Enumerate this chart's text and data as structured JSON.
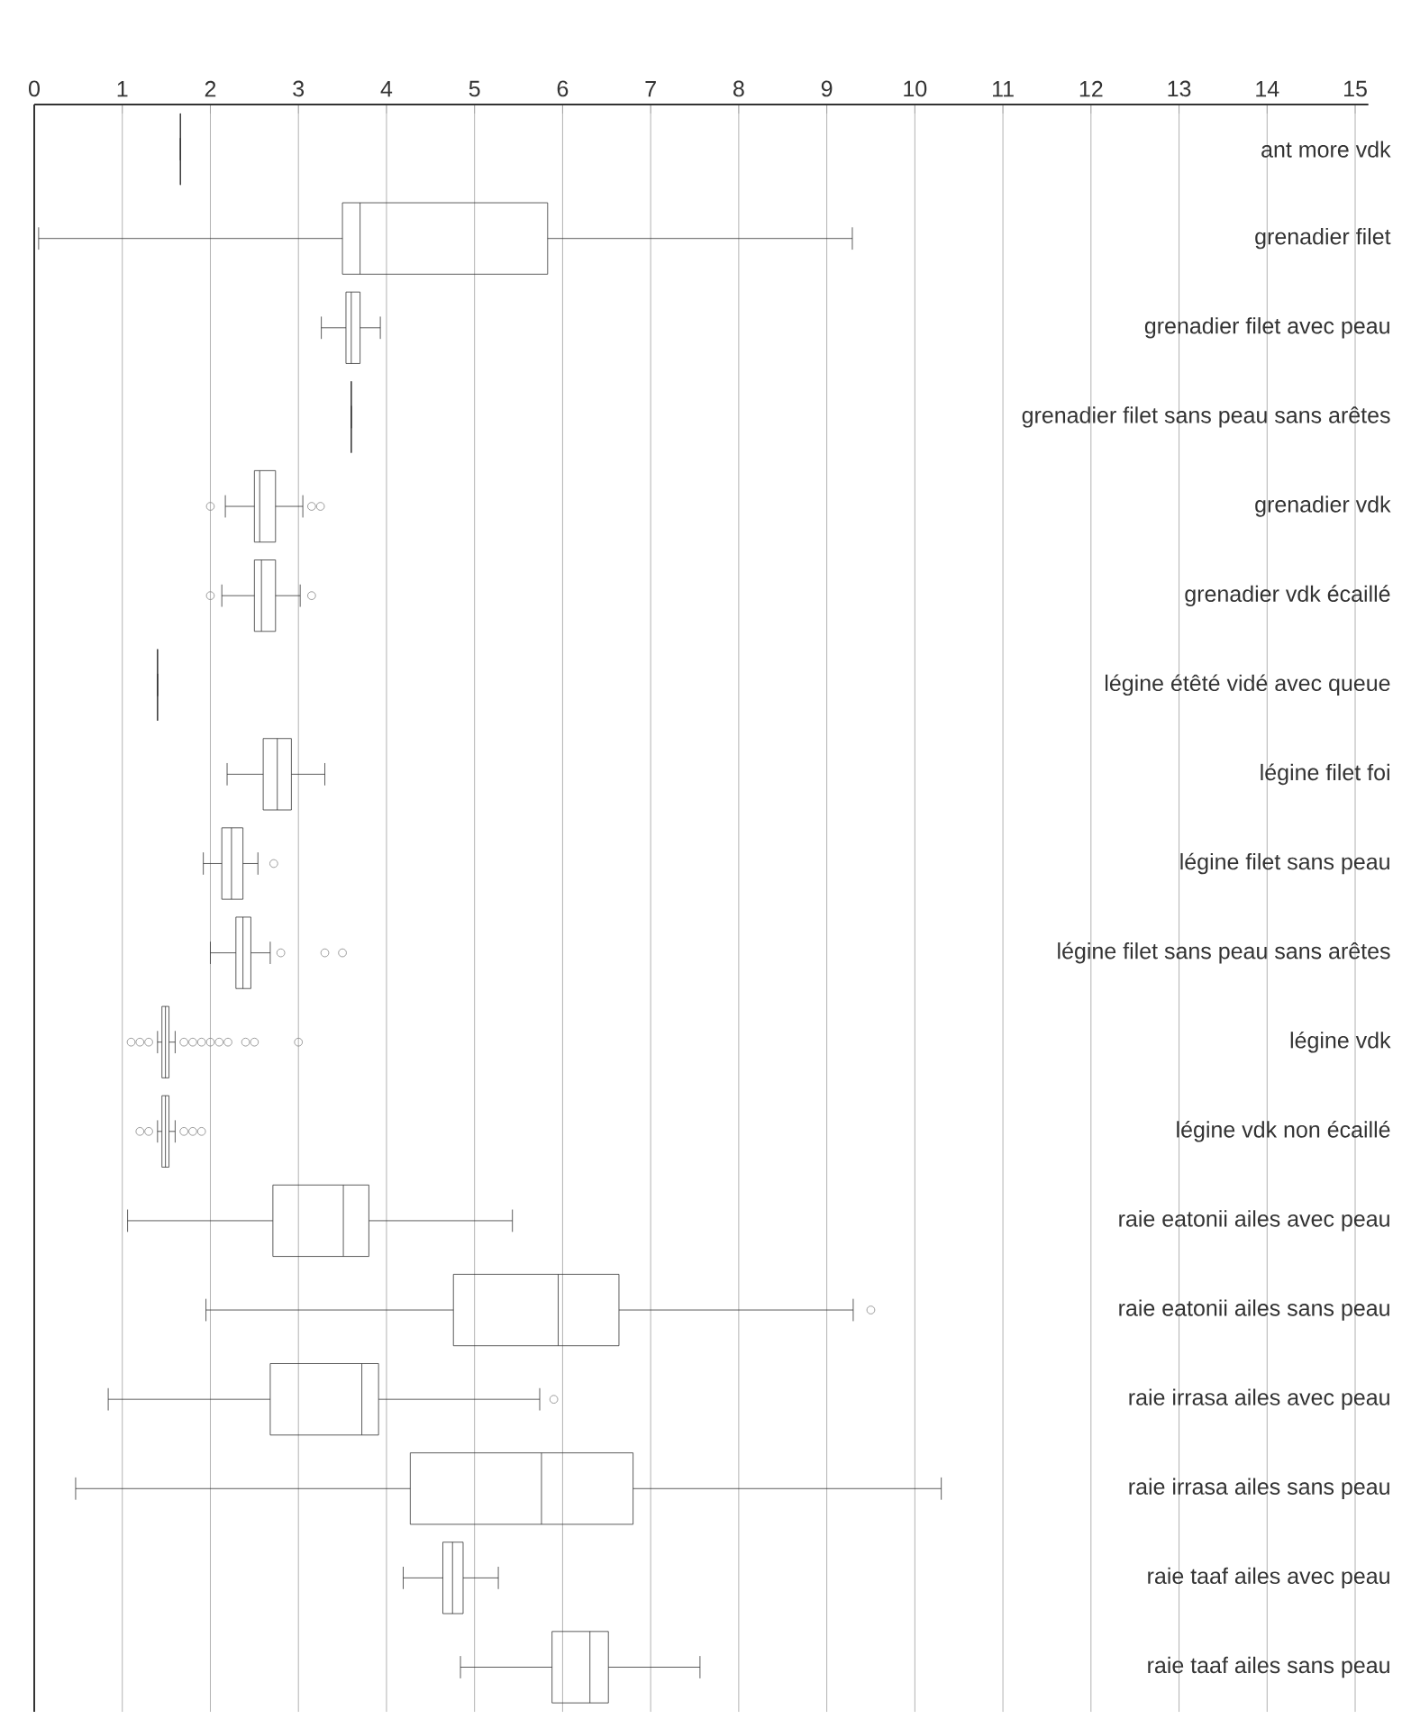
{
  "chart_data": {
    "type": "box",
    "orientation": "horizontal",
    "color": "#333333",
    "marker": "circle",
    "grid": "x",
    "categories": [
      "ant more vdk",
      "grenadier filet",
      "grenadier filet avec peau",
      "grenadier filet sans peau sans arêtes",
      "grenadier vdk",
      "grenadier vdk écaillé",
      "légine étêté vidé avec queue",
      "légine filet foi",
      "légine filet sans peau",
      "légine filet sans peau sans arêtes",
      "légine vdk",
      "légine vdk non écaillé",
      "raie eatonii ailes avec peau",
      "raie eatonii ailes sans peau",
      "raie irrasa ailes avec peau",
      "raie irrasa ailes sans peau",
      "raie taaf ailes avec peau",
      "raie taaf ailes sans peau"
    ],
    "boxes": [
      {
        "low": 1.66,
        "q1": 1.66,
        "median": 1.66,
        "q3": 1.66,
        "high": 1.66
      },
      {
        "low": 0.05,
        "q1": 3.5,
        "median": 3.7,
        "q3": 5.83,
        "high": 9.29
      },
      {
        "low": 3.26,
        "q1": 3.54,
        "median": 3.6,
        "q3": 3.7,
        "high": 3.93
      },
      {
        "low": 3.6,
        "q1": 3.6,
        "median": 3.6,
        "q3": 3.6,
        "high": 3.6
      },
      {
        "low": 2.17,
        "q1": 2.5,
        "median": 2.56,
        "q3": 2.74,
        "high": 3.05,
        "outliers": [
          2.0,
          3.15,
          3.25
        ]
      },
      {
        "low": 2.13,
        "q1": 2.5,
        "median": 2.58,
        "q3": 2.74,
        "high": 3.02,
        "outliers": [
          2.0,
          3.15
        ]
      },
      {
        "low": 1.4,
        "q1": 1.4,
        "median": 1.4,
        "q3": 1.4,
        "high": 1.4
      },
      {
        "low": 2.19,
        "q1": 2.6,
        "median": 2.76,
        "q3": 2.92,
        "high": 3.3
      },
      {
        "low": 1.92,
        "q1": 2.13,
        "median": 2.24,
        "q3": 2.37,
        "high": 2.54,
        "outliers": [
          2.72
        ]
      },
      {
        "low": 2.0,
        "q1": 2.29,
        "median": 2.37,
        "q3": 2.46,
        "high": 2.68,
        "outliers": [
          2.8,
          3.3,
          3.5
        ]
      },
      {
        "low": 1.4,
        "q1": 1.45,
        "median": 1.49,
        "q3": 1.53,
        "high": 1.6,
        "outliers": [
          1.1,
          1.2,
          1.3,
          1.7,
          1.8,
          1.9,
          2.0,
          2.1,
          2.2,
          2.4,
          2.5,
          3.0
        ]
      },
      {
        "low": 1.4,
        "q1": 1.45,
        "median": 1.49,
        "q3": 1.53,
        "high": 1.6,
        "outliers": [
          1.2,
          1.3,
          1.7,
          1.8,
          1.9
        ]
      },
      {
        "low": 1.06,
        "q1": 2.71,
        "median": 3.51,
        "q3": 3.8,
        "high": 5.43
      },
      {
        "low": 1.95,
        "q1": 4.76,
        "median": 5.95,
        "q3": 6.64,
        "high": 9.3,
        "outliers": [
          9.5
        ]
      },
      {
        "low": 0.84,
        "q1": 2.68,
        "median": 3.72,
        "q3": 3.91,
        "high": 5.74,
        "outliers": [
          5.9
        ]
      },
      {
        "low": 0.47,
        "q1": 4.27,
        "median": 5.76,
        "q3": 6.8,
        "high": 10.3
      },
      {
        "low": 4.19,
        "q1": 4.64,
        "median": 4.75,
        "q3": 4.87,
        "high": 5.27
      },
      {
        "low": 4.84,
        "q1": 5.88,
        "median": 6.31,
        "q3": 6.52,
        "high": 7.56
      }
    ],
    "xlim": [
      0,
      15
    ],
    "xticks": [
      0,
      1,
      2,
      3,
      4,
      5,
      6,
      7,
      8,
      9,
      10,
      11,
      12,
      13,
      14,
      15
    ]
  }
}
